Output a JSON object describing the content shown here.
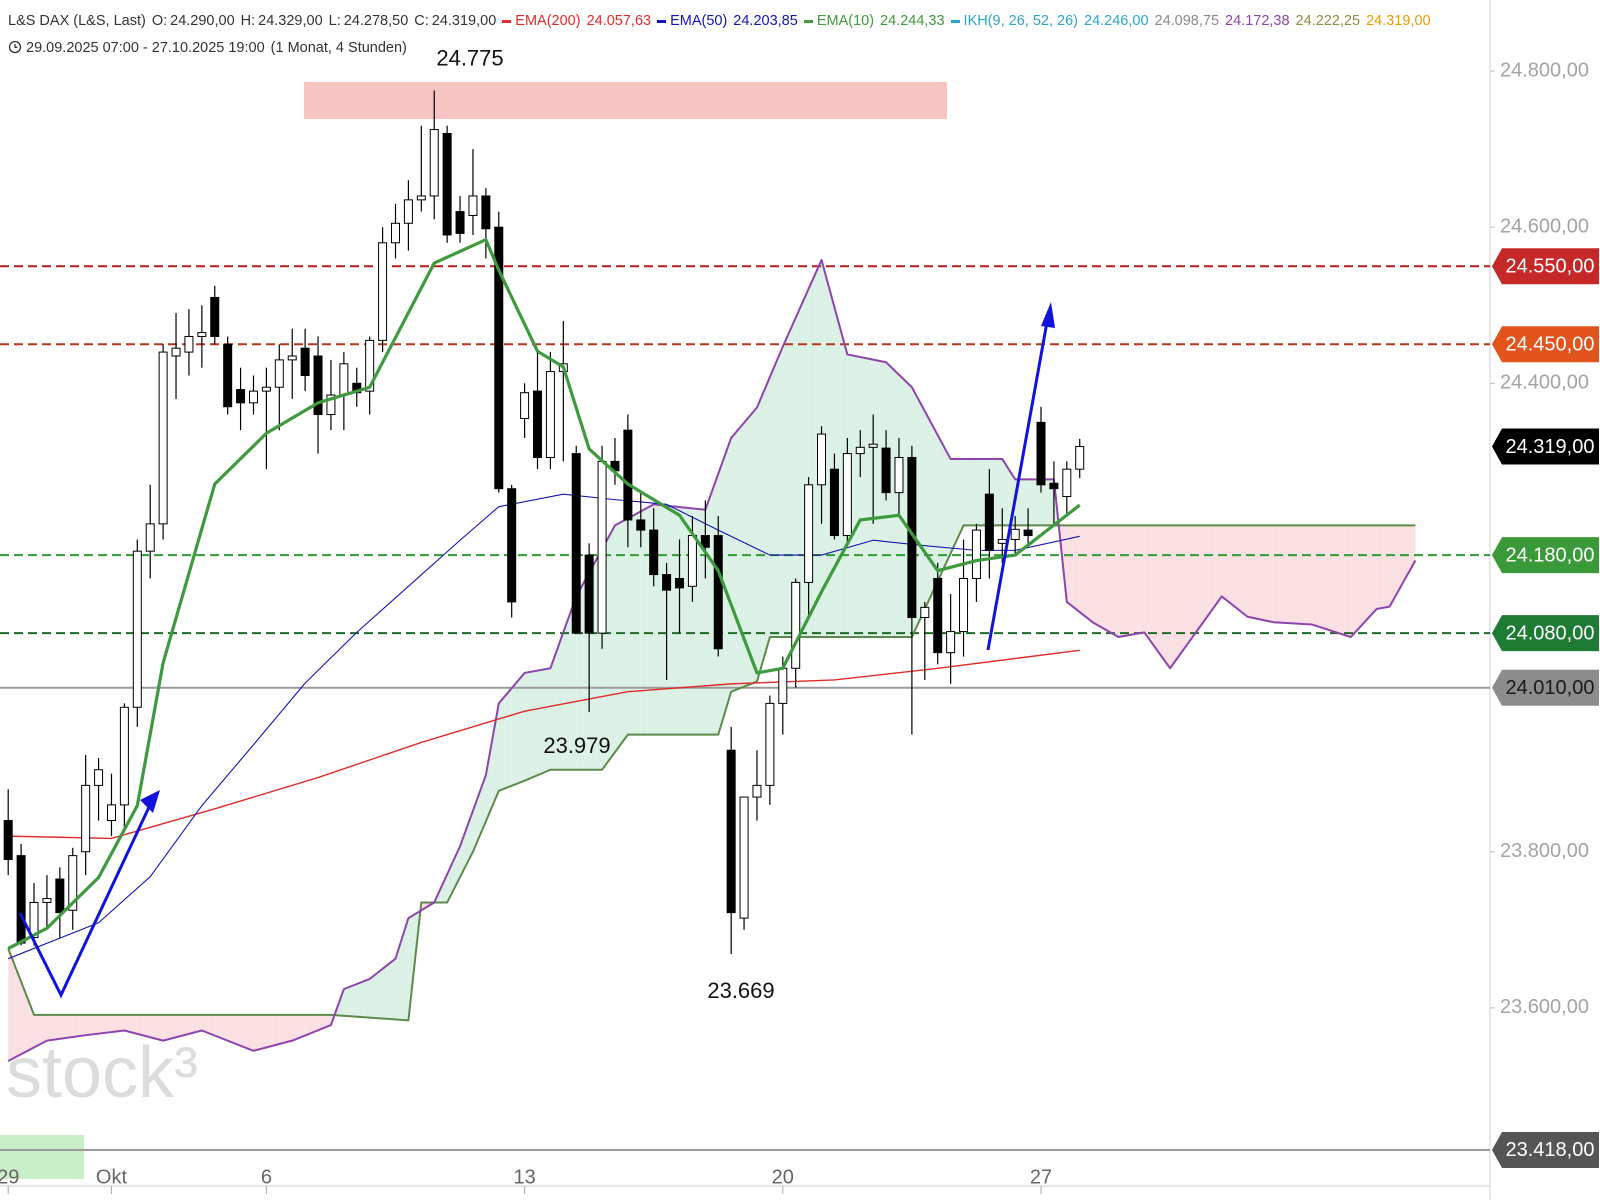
{
  "header": {
    "symbol": "L&S DAX (L&S, Last)",
    "quote": [
      {
        "key": "O:",
        "label": "24.290,00"
      },
      {
        "key": "H:",
        "label": "24.329,00"
      },
      {
        "key": "L:",
        "label": "24.278,50"
      },
      {
        "key": "C:",
        "label": "24.319,00"
      }
    ],
    "date_range": "29.09.2025 07:00 - 27.10.2025 19:00",
    "interval": "(1 Monat, 4 Stunden)"
  },
  "chart_data": {
    "type": "candlestick",
    "categories": [
      "29",
      null,
      null,
      null,
      null,
      null,
      null,
      null,
      "Okt",
      null,
      null,
      null,
      null,
      null,
      null,
      null,
      null,
      null,
      null,
      null,
      "6",
      null,
      null,
      null,
      null,
      null,
      null,
      null,
      null,
      null,
      null,
      null,
      null,
      null,
      null,
      null,
      null,
      null,
      null,
      null,
      "13",
      null,
      null,
      null,
      null,
      null,
      null,
      null,
      null,
      null,
      null,
      null,
      null,
      null,
      null,
      null,
      null,
      null,
      null,
      null,
      "20",
      null,
      null,
      null,
      null,
      null,
      null,
      null,
      null,
      null,
      null,
      null,
      null,
      null,
      null,
      null,
      null,
      null,
      null,
      null,
      "27",
      null,
      null,
      null
    ],
    "open": [
      23840,
      23795,
      23690,
      23735,
      23765,
      23725,
      23800,
      23885,
      23840,
      23860,
      23985,
      24185,
      24220,
      24435,
      24440,
      24460,
      24510,
      24450,
      24392,
      24375,
      24390,
      24395,
      24430,
      24445,
      24435,
      24360,
      24385,
      24400,
      24390,
      24455,
      24580,
      24605,
      24635,
      24640,
      24720,
      24620,
      24615,
      24640,
      24600,
      24265,
      24355,
      24390,
      24305,
      24415,
      24310,
      24180,
      24080,
      24300,
      24340,
      24225,
      24212,
      24155,
      24150,
      24140,
      24205,
      24205,
      23930,
      23715,
      23870,
      23885,
      23990,
      24035,
      24145,
      24270,
      24290,
      24205,
      24310,
      24318,
      24317,
      24260,
      24305,
      24100,
      24150,
      24055,
      24082,
      24150,
      24258,
      24195,
      24200,
      24212,
      24350,
      24272,
      24255,
      24290
    ],
    "high": [
      23880,
      23810,
      23760,
      23770,
      23780,
      23805,
      23924,
      23920,
      23900,
      23990,
      24200,
      24270,
      24450,
      24490,
      24495,
      24500,
      24525,
      24460,
      24420,
      24410,
      24420,
      24450,
      24470,
      24470,
      24460,
      24430,
      24440,
      24420,
      24460,
      24600,
      24630,
      24660,
      24730,
      24775,
      24730,
      24640,
      24700,
      24650,
      24620,
      24270,
      24400,
      24440,
      24440,
      24480,
      24320,
      24195,
      24320,
      24330,
      24360,
      24260,
      24240,
      24170,
      24200,
      24230,
      24250,
      24230,
      23960,
      23870,
      23930,
      24000,
      24050,
      24150,
      24280,
      24345,
      24310,
      24330,
      24340,
      24360,
      24340,
      24330,
      24320,
      24120,
      24170,
      24130,
      24200,
      24220,
      24290,
      24240,
      24230,
      24240,
      24370,
      24300,
      24300,
      24329
    ],
    "low": [
      23770,
      23680,
      23680,
      23700,
      23690,
      23700,
      23770,
      23840,
      23820,
      23830,
      23960,
      24150,
      24200,
      24380,
      24410,
      24420,
      24450,
      24360,
      24340,
      24360,
      24290,
      24340,
      24380,
      24390,
      24310,
      24340,
      24340,
      24370,
      24360,
      24440,
      24560,
      24570,
      24620,
      24610,
      24580,
      24580,
      24590,
      24560,
      24260,
      24100,
      24330,
      24290,
      24290,
      24300,
      24080,
      23979,
      24060,
      24270,
      24190,
      24190,
      24140,
      24020,
      24080,
      24120,
      24150,
      24050,
      23669,
      23700,
      23840,
      23860,
      23950,
      24010,
      24100,
      24220,
      24200,
      24195,
      24280,
      24220,
      24250,
      24230,
      23950,
      24020,
      24040,
      24015,
      24050,
      24120,
      24150,
      24170,
      24180,
      24190,
      24260,
      24220,
      24230,
      24278.5
    ],
    "close": [
      23790,
      23683,
      23735,
      23740,
      23722,
      23795,
      23885,
      23905,
      23860,
      23985,
      24185,
      24220,
      24440,
      24445,
      24460,
      24465,
      24460,
      24370,
      24375,
      24390,
      24395,
      24430,
      24435,
      24410,
      24360,
      24385,
      24425,
      24388,
      24455,
      24580,
      24605,
      24635,
      24640,
      24725,
      24590,
      24592,
      24640,
      24598,
      24265,
      24120,
      24388,
      24305,
      24415,
      24425,
      24080,
      24080,
      24300,
      24288,
      24225,
      24212,
      24155,
      24135,
      24138,
      24205,
      24190,
      24060,
      23722,
      23870,
      23885,
      23990,
      24035,
      24145,
      24270,
      24335,
      24205,
      24310,
      24318,
      24322,
      24260,
      24305,
      24100,
      24113,
      24055,
      24082,
      24150,
      24212,
      24186,
      24200,
      24213,
      24205,
      24270,
      24265,
      24290,
      24319
    ],
    "up_color": "#ffffff",
    "down_color": "#000000",
    "xlim": [
      -0.635,
      114.78
    ],
    "ylim": [
      23400,
      24891
    ],
    "yticks": [
      {
        "value": 23600,
        "label": "23.600,00"
      },
      {
        "value": 23800,
        "label": "23.800,00"
      },
      {
        "value": 24400,
        "label": "24.400,00"
      },
      {
        "value": 24600,
        "label": "24.600,00"
      },
      {
        "value": 24800,
        "label": "24.800,00"
      }
    ],
    "overlays": [
      {
        "name": "EMA(200)",
        "color": "#e02b2b",
        "legend_value": "24.057,63",
        "x": [
          0,
          8,
          16,
          24,
          32,
          40,
          48,
          56,
          64,
          72,
          83
        ],
        "values": [
          23820,
          23817,
          23855,
          23895,
          23940,
          23980,
          24005,
          24015,
          24020,
          24035,
          24058
        ]
      },
      {
        "name": "EMA(50)",
        "color": "#1515b5",
        "legend_value": "24.203,85",
        "x": [
          0,
          7,
          11,
          15,
          19,
          23,
          27,
          31,
          35,
          38,
          43,
          47,
          51,
          55,
          59,
          63,
          67,
          71,
          75,
          78,
          83
        ],
        "values": [
          23663,
          23709,
          23768,
          23859,
          23937,
          24016,
          24081,
          24140,
          24199,
          24242,
          24258,
          24251,
          24245,
          24212,
          24180,
          24180,
          24199,
          24192,
          24186,
          24186,
          24204
        ]
      },
      {
        "name": "EMA(10)",
        "color": "#3d9a3d",
        "legend_value": "24.244,33",
        "x": [
          0,
          3,
          7,
          10,
          12,
          16,
          20,
          24,
          28,
          33,
          37,
          38,
          41,
          43,
          45,
          48,
          52,
          55,
          58,
          60,
          63,
          66,
          69,
          72,
          75,
          78,
          83
        ],
        "values": [
          23676,
          23702,
          23767,
          23859,
          24042,
          24271,
          24336,
          24375,
          24395,
          24554,
          24584,
          24545,
          24441,
          24421,
          24316,
          24271,
          24231,
          24160,
          24029,
          24035,
          24133,
          24225,
          24231,
          24160,
          24173,
          24180,
          24244
        ]
      }
    ],
    "ichimoku": {
      "name": "IKH(9, 26, 52, 26)",
      "color": "#2aa6c6",
      "legend_values": [
        {
          "label": "24.246,00",
          "color": "#2aa6c6"
        },
        {
          "label": "24.098,75",
          "color": "#8a8a8a"
        },
        {
          "label": "24.172,38",
          "color": "#8e44ad"
        },
        {
          "label": "24.222,25",
          "color": "#8f8f45"
        },
        {
          "label": "24.319,00",
          "color": "#e69b00"
        }
      ],
      "span_a": {
        "color": "#8e44ad",
        "x": [
          0,
          3,
          6,
          9,
          12,
          15,
          19,
          22,
          25,
          26,
          28,
          30,
          31,
          33,
          35,
          37,
          38,
          40,
          42,
          44,
          47,
          50,
          54,
          56,
          58,
          60,
          63,
          65,
          68,
          70,
          73,
          77,
          78,
          81,
          82,
          84,
          86,
          88,
          90,
          92,
          94,
          96,
          98,
          101,
          104,
          106,
          107,
          109
        ],
        "values": [
          23532,
          23558,
          23565,
          23571,
          23558,
          23571,
          23545,
          23558,
          23578,
          23624,
          23637,
          23663,
          23715,
          23735,
          23807,
          23898,
          23990,
          24029,
          24035,
          24127,
          24218,
          24245,
          24238,
          24330,
          24369,
          24447,
          24558,
          24437,
          24427,
          24395,
          24303,
          24303,
          24277,
          24277,
          24120,
          24094,
          24075,
          24081,
          24035,
          24081,
          24127,
          24101,
          24094,
          24091,
          24075,
          24111,
          24114,
          24173
        ]
      },
      "span_b": {
        "color": "#5d8a4a",
        "x": [
          0,
          2,
          25,
          31,
          32,
          34,
          36,
          38,
          40,
          42,
          46,
          48,
          55,
          56,
          58,
          59,
          70,
          74,
          109
        ],
        "values": [
          23676,
          23591,
          23591,
          23584,
          23735,
          23735,
          23800,
          23878,
          23891,
          23905,
          23905,
          23950,
          23950,
          24005,
          24018,
          24075,
          24075,
          24218,
          24218
        ]
      },
      "bull_fill": "#dcf1e6",
      "bear_fill": "#fbe0e3"
    },
    "price_lines": [
      {
        "value": 24550,
        "label": "24.550,00",
        "color": "#b71c1c",
        "box": "#c62828",
        "text_color": "#ffffff",
        "style": "dashed"
      },
      {
        "value": 24450,
        "label": "24.450,00",
        "color": "#b8341b",
        "box": "#e2541b",
        "text_color": "#ffffff",
        "style": "dashed"
      },
      {
        "value": 24319,
        "label": "24.319,00",
        "color": "#000000",
        "box": "#000000",
        "text_color": "#ffffff",
        "style": "none"
      },
      {
        "value": 24180,
        "label": "24.180,00",
        "color": "#2e9e2e",
        "box": "#3a9a3a",
        "text_color": "#ffffff",
        "style": "dashed"
      },
      {
        "value": 24080,
        "label": "24.080,00",
        "color": "#1b6b25",
        "box": "#1e7b34",
        "text_color": "#ffffff",
        "style": "dashed"
      },
      {
        "value": 24010,
        "label": "24.010,00",
        "color": "#9a9a9a",
        "box": "#8c8c8c",
        "text_color": "#1a1a1a",
        "style": "solid"
      },
      {
        "value": 23418,
        "label": "23.418,00",
        "color": "#9a9a9a",
        "box": "#555555",
        "text_color": "#ffffff",
        "style": "solid"
      }
    ],
    "annotations": [
      {
        "label": "24.775",
        "value": 24775
      },
      {
        "label": "23.979",
        "value": 23979
      },
      {
        "label": "23.669",
        "value": 23669
      }
    ],
    "watermark": "stock³"
  }
}
